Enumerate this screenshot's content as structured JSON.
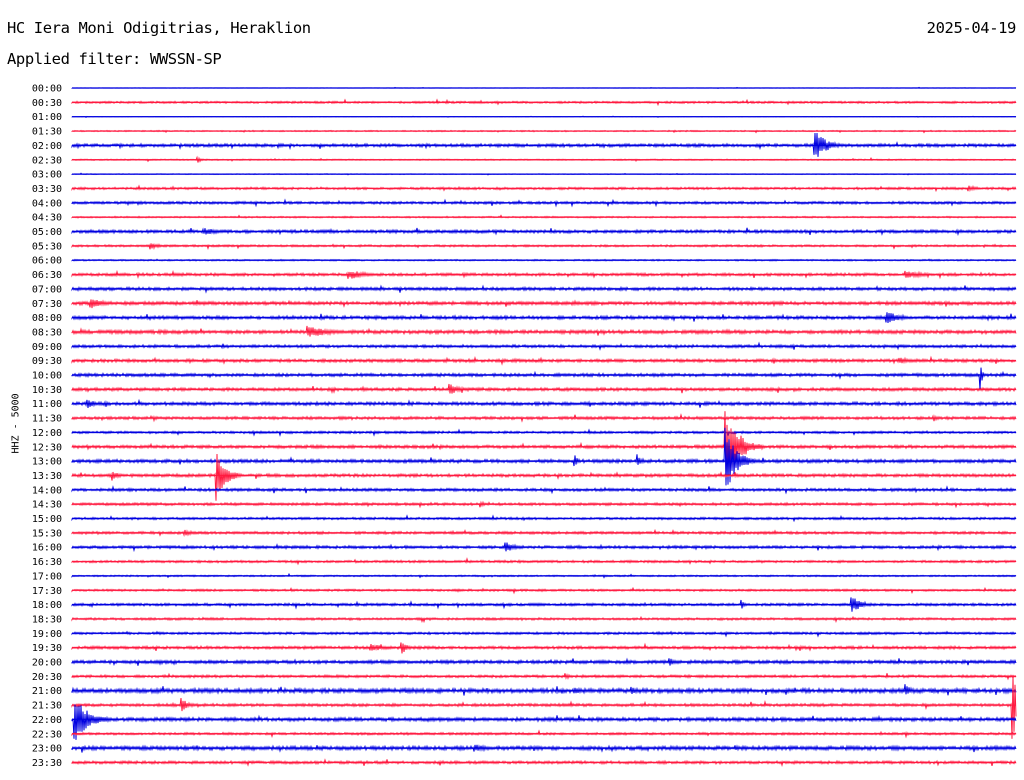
{
  "header": {
    "station": "HC Iera Moni Odigitrias, Heraklion",
    "date": "2025-04-19",
    "filter": "Applied filter: WWSSN-SP",
    "channel": "HHZ - 5000"
  },
  "colors": {
    "even_row": "#0000e0",
    "odd_row": "#ff1a40",
    "background": "#ffffff"
  },
  "chart_data": {
    "type": "line",
    "title": "HC Iera Moni Odigitrias, Heraklion",
    "ylabel": "HHZ - 5000",
    "grid": false,
    "row_interval_minutes": 30,
    "row_labels": [
      "00:00",
      "00:30",
      "01:00",
      "01:30",
      "02:00",
      "02:30",
      "03:00",
      "03:30",
      "04:00",
      "04:30",
      "05:00",
      "05:30",
      "06:00",
      "06:30",
      "07:00",
      "07:30",
      "08:00",
      "08:30",
      "09:00",
      "09:30",
      "10:00",
      "10:30",
      "11:00",
      "11:30",
      "12:00",
      "12:30",
      "13:00",
      "13:30",
      "14:00",
      "14:30",
      "15:00",
      "15:30",
      "16:00",
      "16:30",
      "17:00",
      "17:30",
      "18:00",
      "18:30",
      "19:00",
      "19:30",
      "20:00",
      "20:30",
      "21:00",
      "21:30",
      "22:00",
      "22:30",
      "23:00",
      "23:30"
    ],
    "row_activity": [
      0.2,
      0.8,
      0.2,
      0.5,
      1.2,
      0.5,
      0.3,
      0.9,
      1.0,
      0.6,
      1.2,
      0.8,
      0.6,
      1.1,
      1.2,
      1.3,
      1.3,
      1.4,
      1.1,
      1.2,
      1.2,
      1.2,
      1.3,
      1.1,
      0.9,
      1.2,
      1.3,
      1.2,
      1.1,
      1.0,
      0.9,
      1.0,
      1.1,
      0.9,
      0.6,
      0.8,
      1.0,
      0.9,
      0.9,
      1.1,
      1.3,
      1.0,
      1.7,
      1.1,
      1.4,
      0.9,
      1.5,
      1.1
    ],
    "events": [
      {
        "row": 4,
        "minute": 23.6,
        "amplitude": 16,
        "duration_minutes": 1.0
      },
      {
        "row": 25,
        "minute": 20.8,
        "amplitude": 34,
        "duration_minutes": 1.2
      },
      {
        "row": 26,
        "minute": 20.8,
        "amplitude": 30,
        "duration_minutes": 1.0
      },
      {
        "row": 27,
        "minute": 4.6,
        "amplitude": 26,
        "duration_minutes": 0.8
      },
      {
        "row": 26,
        "minute": 18.0,
        "amplitude": 6,
        "duration_minutes": 0.4
      },
      {
        "row": 36,
        "minute": 24.8,
        "amplitude": 8,
        "duration_minutes": 0.9
      },
      {
        "row": 39,
        "minute": 10.5,
        "amplitude": 6,
        "duration_minutes": 0.5
      },
      {
        "row": 21,
        "minute": 12.0,
        "amplitude": 6,
        "duration_minutes": 1.0
      },
      {
        "row": 17,
        "minute": 7.5,
        "amplitude": 6,
        "duration_minutes": 2.0
      },
      {
        "row": 22,
        "minute": 0.5,
        "amplitude": 6,
        "duration_minutes": 0.6
      },
      {
        "row": 43,
        "minute": 3.5,
        "amplitude": 7,
        "duration_minutes": 0.6
      },
      {
        "row": 44,
        "minute": 0.1,
        "amplitude": 22,
        "duration_minutes": 1.2
      },
      {
        "row": 43,
        "minute": 29.9,
        "amplitude": 40,
        "duration_minutes": 0.3
      },
      {
        "row": 42,
        "minute": 16.0,
        "amplitude": 4,
        "duration_minutes": 0.8
      },
      {
        "row": 42,
        "minute": 26.5,
        "amplitude": 6,
        "duration_minutes": 0.5
      },
      {
        "row": 20,
        "minute": 28.9,
        "amplitude": 8,
        "duration_minutes": 0.2
      },
      {
        "row": 26,
        "minute": 16.0,
        "amplitude": 5,
        "duration_minutes": 0.3
      },
      {
        "row": 10,
        "minute": 4.2,
        "amplitude": 4,
        "duration_minutes": 1.2
      },
      {
        "row": 5,
        "minute": 4.0,
        "amplitude": 3,
        "duration_minutes": 0.3
      },
      {
        "row": 11,
        "minute": 2.5,
        "amplitude": 4,
        "duration_minutes": 0.7
      },
      {
        "row": 32,
        "minute": 13.8,
        "amplitude": 5,
        "duration_minutes": 0.9
      },
      {
        "row": 46,
        "minute": 12.8,
        "amplitude": 4,
        "duration_minutes": 1.4
      },
      {
        "row": 13,
        "minute": 8.8,
        "amplitude": 5,
        "duration_minutes": 1.5
      },
      {
        "row": 13,
        "minute": 26.5,
        "amplitude": 4,
        "duration_minutes": 1.7
      },
      {
        "row": 16,
        "minute": 25.9,
        "amplitude": 6,
        "duration_minutes": 1.4
      },
      {
        "row": 19,
        "minute": 26.3,
        "amplitude": 4,
        "duration_minutes": 0.8
      },
      {
        "row": 15,
        "minute": 0.6,
        "amplitude": 6,
        "duration_minutes": 1.1
      },
      {
        "row": 31,
        "minute": 3.6,
        "amplitude": 3,
        "duration_minutes": 0.8
      },
      {
        "row": 27,
        "minute": 1.3,
        "amplitude": 5,
        "duration_minutes": 0.6
      },
      {
        "row": 36,
        "minute": 21.3,
        "amplitude": 4,
        "duration_minutes": 0.3
      },
      {
        "row": 39,
        "minute": 9.5,
        "amplitude": 4,
        "duration_minutes": 1.4
      },
      {
        "row": 40,
        "minute": 19.0,
        "amplitude": 4,
        "duration_minutes": 0.6
      },
      {
        "row": 42,
        "minute": 17.8,
        "amplitude": 4,
        "duration_minutes": 0.6
      },
      {
        "row": 7,
        "minute": 28.5,
        "amplitude": 3,
        "duration_minutes": 0.9
      },
      {
        "row": 41,
        "minute": 15.7,
        "amplitude": 3,
        "duration_minutes": 0.5
      },
      {
        "row": 29,
        "minute": 13.0,
        "amplitude": 3,
        "duration_minutes": 0.4
      },
      {
        "row": 23,
        "minute": 27.4,
        "amplitude": 3,
        "duration_minutes": 0.4
      }
    ]
  }
}
